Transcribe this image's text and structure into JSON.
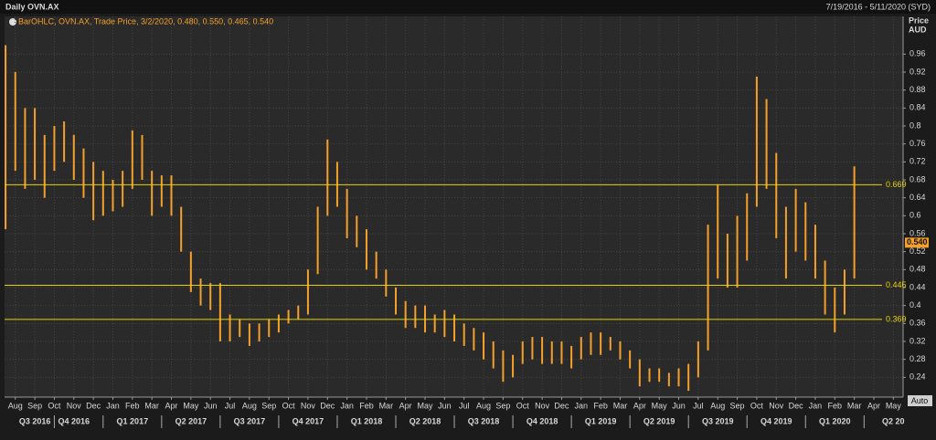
{
  "chart_data": {
    "type": "ohlc",
    "title": "Daily OVN.AX",
    "date_range": "7/19/2016 - 5/11/2020 (SYD)",
    "legend": "BarOHLC, OVN.AX, Trade Price, 3/2/2020, 0.480, 0.550, 0.465, 0.540",
    "y_label": "Price",
    "y_unit": "AUD",
    "button": "Auto",
    "series": [
      {
        "name": "OVN.AX",
        "color": "#f5a02a",
        "high": [
          0.98,
          0.92,
          0.84,
          0.84,
          0.78,
          0.8,
          0.81,
          0.78,
          0.75,
          0.72,
          0.7,
          0.68,
          0.7,
          0.79,
          0.78,
          0.7,
          0.69,
          0.69,
          0.62,
          0.52,
          0.46,
          0.45,
          0.45,
          0.38,
          0.37,
          0.36,
          0.36,
          0.37,
          0.38,
          0.39,
          0.4,
          0.48,
          0.62,
          0.77,
          0.72,
          0.66,
          0.6,
          0.57,
          0.52,
          0.48,
          0.44,
          0.41,
          0.4,
          0.4,
          0.38,
          0.39,
          0.38,
          0.36,
          0.35,
          0.34,
          0.32,
          0.3,
          0.29,
          0.32,
          0.33,
          0.33,
          0.32,
          0.32,
          0.31,
          0.33,
          0.34,
          0.34,
          0.33,
          0.32,
          0.3,
          0.28,
          0.26,
          0.26,
          0.25,
          0.26,
          0.27,
          0.32,
          0.58,
          0.67,
          0.56,
          0.6,
          0.65,
          0.91,
          0.86,
          0.74,
          0.62,
          0.66,
          0.63,
          0.58,
          0.5,
          0.44,
          0.48,
          0.71
        ],
        "low": [
          0.57,
          0.7,
          0.66,
          0.68,
          0.64,
          0.7,
          0.72,
          0.68,
          0.64,
          0.59,
          0.6,
          0.61,
          0.62,
          0.66,
          0.68,
          0.6,
          0.62,
          0.6,
          0.52,
          0.43,
          0.4,
          0.39,
          0.32,
          0.32,
          0.33,
          0.31,
          0.32,
          0.33,
          0.34,
          0.36,
          0.37,
          0.38,
          0.47,
          0.6,
          0.62,
          0.55,
          0.53,
          0.48,
          0.46,
          0.42,
          0.38,
          0.35,
          0.35,
          0.34,
          0.34,
          0.33,
          0.32,
          0.31,
          0.3,
          0.28,
          0.26,
          0.23,
          0.24,
          0.27,
          0.28,
          0.27,
          0.27,
          0.27,
          0.26,
          0.28,
          0.29,
          0.29,
          0.3,
          0.28,
          0.26,
          0.22,
          0.23,
          0.23,
          0.22,
          0.22,
          0.21,
          0.24,
          0.3,
          0.46,
          0.44,
          0.44,
          0.5,
          0.62,
          0.66,
          0.55,
          0.46,
          0.52,
          0.5,
          0.46,
          0.38,
          0.34,
          0.38,
          0.46
        ]
      }
    ],
    "levels": [
      0.669,
      0.445,
      0.369
    ],
    "level_color": "#e8d200",
    "last_price": {
      "value": 0.54,
      "label": "0.540"
    },
    "ylim": [
      0.196,
      1.044
    ],
    "yticks": [
      0.24,
      0.28,
      0.32,
      0.36,
      0.4,
      0.44,
      0.48,
      0.52,
      0.56,
      0.6,
      0.64,
      0.68,
      0.72,
      0.76,
      0.8,
      0.84,
      0.88,
      0.92,
      0.96
    ],
    "xlim": [
      -0.1,
      92
    ],
    "xticks": [
      {
        "value": 1,
        "label": "Aug"
      },
      {
        "value": 3,
        "label": "Sep"
      },
      {
        "value": 5,
        "label": "Oct"
      },
      {
        "value": 7,
        "label": "Nov"
      },
      {
        "value": 9,
        "label": "Dec"
      },
      {
        "value": 11,
        "label": "Jan"
      },
      {
        "value": 13,
        "label": "Feb"
      },
      {
        "value": 15,
        "label": "Mar"
      },
      {
        "value": 17,
        "label": "Apr"
      },
      {
        "value": 19,
        "label": "May"
      },
      {
        "value": 21,
        "label": "Jun"
      },
      {
        "value": 23,
        "label": "Jul"
      },
      {
        "value": 25,
        "label": "Aug"
      },
      {
        "value": 27,
        "label": "Sep"
      },
      {
        "value": 29,
        "label": "Oct"
      },
      {
        "value": 31,
        "label": "Nov"
      },
      {
        "value": 33,
        "label": "Dec"
      },
      {
        "value": 35,
        "label": "Jan"
      },
      {
        "value": 37,
        "label": "Feb"
      },
      {
        "value": 39,
        "label": "Mar"
      },
      {
        "value": 41,
        "label": "Apr"
      },
      {
        "value": 43,
        "label": "May"
      },
      {
        "value": 45,
        "label": "Jun"
      },
      {
        "value": 47,
        "label": "Jul"
      },
      {
        "value": 49,
        "label": "Aug"
      },
      {
        "value": 51,
        "label": "Sep"
      },
      {
        "value": 53,
        "label": "Oct"
      },
      {
        "value": 55,
        "label": "Nov"
      },
      {
        "value": 57,
        "label": "Dec"
      },
      {
        "value": 59,
        "label": "Jan"
      },
      {
        "value": 61,
        "label": "Feb"
      },
      {
        "value": 63,
        "label": "Mar"
      },
      {
        "value": 65,
        "label": "Apr"
      },
      {
        "value": 67,
        "label": "May"
      },
      {
        "value": 69,
        "label": "Jun"
      },
      {
        "value": 71,
        "label": "Jul"
      },
      {
        "value": 73,
        "label": "Aug"
      },
      {
        "value": 75,
        "label": "Sep"
      },
      {
        "value": 77,
        "label": "Oct"
      },
      {
        "value": 79,
        "label": "Nov"
      },
      {
        "value": 81,
        "label": "Dec"
      },
      {
        "value": 83,
        "label": "Jan"
      },
      {
        "value": 85,
        "label": "Feb"
      },
      {
        "value": 87,
        "label": "Mar"
      },
      {
        "value": 89,
        "label": "Apr"
      },
      {
        "value": 91,
        "label": "May"
      }
    ],
    "quarters": [
      {
        "value": 3,
        "label": "Q3 2016"
      },
      {
        "value": 7,
        "label": "Q4 2016"
      },
      {
        "value": 13,
        "label": "Q1 2017"
      },
      {
        "value": 19,
        "label": "Q2 2017"
      },
      {
        "value": 25,
        "label": "Q3 2017"
      },
      {
        "value": 31,
        "label": "Q4 2017"
      },
      {
        "value": 37,
        "label": "Q1 2018"
      },
      {
        "value": 43,
        "label": "Q2 2018"
      },
      {
        "value": 49,
        "label": "Q3 2018"
      },
      {
        "value": 55,
        "label": "Q4 2018"
      },
      {
        "value": 61,
        "label": "Q1 2019"
      },
      {
        "value": 67,
        "label": "Q2 2019"
      },
      {
        "value": 73,
        "label": "Q3 2019"
      },
      {
        "value": 79,
        "label": "Q4 2019"
      },
      {
        "value": 85,
        "label": "Q1 2020"
      },
      {
        "value": 91,
        "label": "Q2 20"
      }
    ],
    "grid": true
  }
}
